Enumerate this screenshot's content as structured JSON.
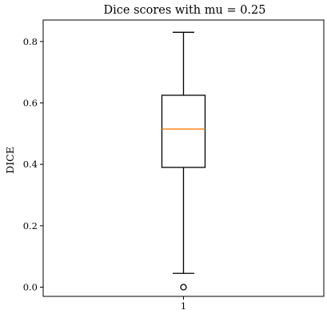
{
  "chart_data": {
    "type": "box",
    "title": "Dice scores with mu = 0.25",
    "xlabel": "",
    "ylabel": "DICE",
    "categories": [
      "1"
    ],
    "ylim": [
      -0.03,
      0.87
    ],
    "yticks": [
      0.0,
      0.2,
      0.4,
      0.6,
      0.8
    ],
    "ytick_labels": [
      "0.0",
      "0.2",
      "0.4",
      "0.6",
      "0.8"
    ],
    "grid": false,
    "boxes": [
      {
        "category": "1",
        "whisker_low": 0.045,
        "q1": 0.39,
        "median": 0.515,
        "q3": 0.625,
        "whisker_high": 0.83,
        "outliers": [
          0.0
        ]
      }
    ],
    "colors": {
      "box": "#000000",
      "median": "#ff7f0e",
      "whisker": "#000000",
      "outlier": "#000000"
    }
  }
}
